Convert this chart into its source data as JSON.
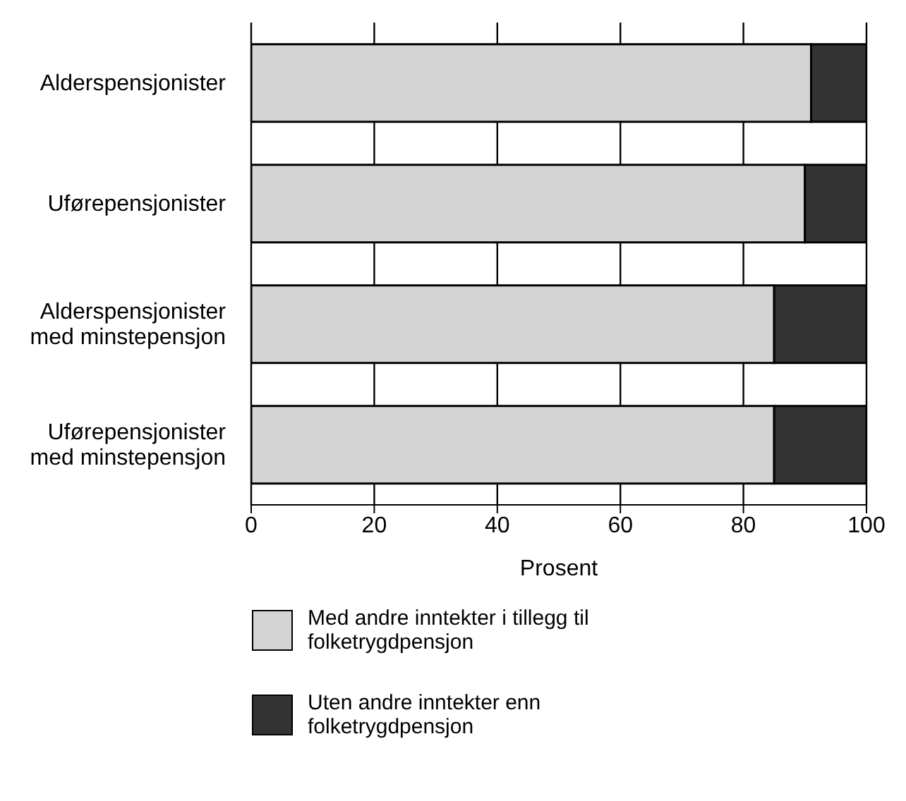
{
  "chart_data": {
    "type": "bar",
    "orientation": "horizontal",
    "stacked": true,
    "categories": [
      "Alderspensjonister",
      "Uførepensjonister",
      "Alderspensjonister med minstepensjon",
      "Uførepensjonister med minstepensjon"
    ],
    "series": [
      {
        "name": "Med andre inntekter i tillegg til folketrygdpensjon",
        "color": "#d4d4d4",
        "values": [
          91,
          90,
          85,
          85
        ]
      },
      {
        "name": "Uten andre inntekter enn folketrygdpensjon",
        "color": "#333333",
        "values": [
          9,
          10,
          15,
          15
        ]
      }
    ],
    "xlim": [
      0,
      100
    ],
    "xticks": [
      0,
      20,
      40,
      60,
      80,
      100
    ],
    "xlabel": "Prosent",
    "grid": "x",
    "legend": "bottom"
  }
}
